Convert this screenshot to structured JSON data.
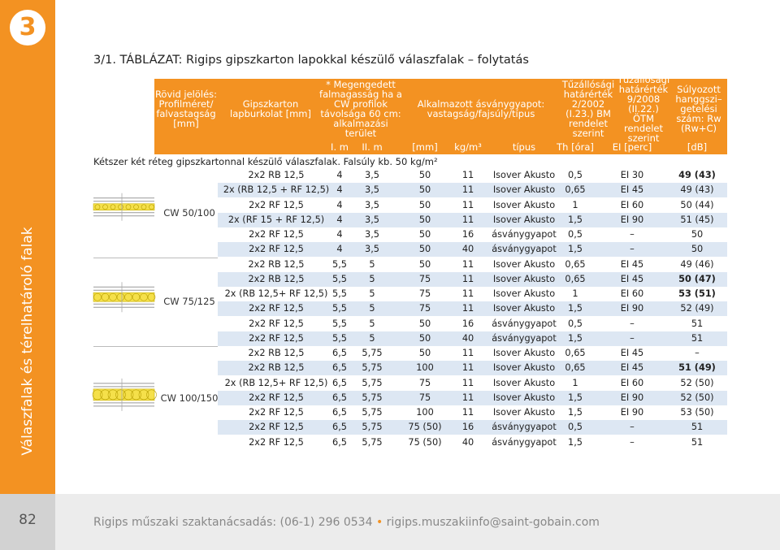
{
  "badge": "3",
  "side_title": "Válaszfalak és térelhatároló falak",
  "page_number": "82",
  "title": "3/1. TÁBLÁZAT: Rigips gipszkarton lapokkal készülő válaszfalak – folytatás",
  "table": {
    "headers": [
      "Rövid jelölés: Profilméret/ falvastagság [mm]",
      "Gipszkarton lapburkolat [mm]",
      "* Megengedett falmagasság ha a CW profilok távolsága 60 cm: alkalmazási terület",
      "Alkalmazott ásványgyapot: vastagság/fajsúly/típus",
      "Tűzállósági határérték 2/2002 (I.23.) BM rendelet szerint",
      "Tűzállósági határérték 9/2008 (II.22.) ÖTM rendelet szerint",
      "Súlyozott hanggszi– getelési szám: Rw (Rw+C)"
    ],
    "units": [
      "I. m",
      "II. m",
      "[mm]",
      "kg/m³",
      "típus",
      "Th [óra]",
      "EI [perc]",
      "[dB]"
    ],
    "section": "Kétszer két réteg gipszkartonnal készülő válaszfalak. Falsúly kb. 50 kg/m²",
    "groups": [
      {
        "label": "CW 50/100",
        "rows": [
          {
            "cells": [
              "2x2 RB 12,5",
              "4",
              "3,5",
              "50",
              "11",
              "Isover Akusto",
              "0,5",
              "EI 30",
              "49 (43)"
            ],
            "bold": true
          },
          {
            "cells": [
              "2x (RB 12,5 + RF 12,5)",
              "4",
              "3,5",
              "50",
              "11",
              "Isover Akusto",
              "0,65",
              "EI 45",
              "49 (43)"
            ],
            "bold": false
          },
          {
            "cells": [
              "2x2 RF 12,5",
              "4",
              "3,5",
              "50",
              "11",
              "Isover Akusto",
              "1",
              "EI 60",
              "50 (44)"
            ],
            "bold": false
          },
          {
            "cells": [
              "2x (RF 15 + RF 12,5)",
              "4",
              "3,5",
              "50",
              "11",
              "Isover Akusto",
              "1,5",
              "EI 90",
              "51 (45)"
            ],
            "bold": false
          },
          {
            "cells": [
              "2x2 RF 12,5",
              "4",
              "3,5",
              "50",
              "16",
              "ásványgyapot",
              "0,5",
              "–",
              "50"
            ],
            "bold": false
          },
          {
            "cells": [
              "2x2 RF 12,5",
              "4",
              "3,5",
              "50",
              "40",
              "ásványgyapot",
              "1,5",
              "–",
              "50"
            ],
            "bold": false
          }
        ]
      },
      {
        "label": "CW 75/125",
        "rows": [
          {
            "cells": [
              "2x2 RB 12,5",
              "5,5",
              "5",
              "50",
              "11",
              "Isover Akusto",
              "0,65",
              "EI 45",
              "49 (46)"
            ],
            "bold": false
          },
          {
            "cells": [
              "2x2 RB 12,5",
              "5,5",
              "5",
              "75",
              "11",
              "Isover Akusto",
              "0,65",
              "EI 45",
              "50 (47)"
            ],
            "bold": true
          },
          {
            "cells": [
              "2x (RB 12,5+ RF 12,5)",
              "5,5",
              "5",
              "75",
              "11",
              "Isover Akusto",
              "1",
              "EI 60",
              "53 (51)"
            ],
            "bold": true
          },
          {
            "cells": [
              "2x2 RF 12,5",
              "5,5",
              "5",
              "75",
              "11",
              "Isover Akusto",
              "1,5",
              "EI 90",
              "52 (49)"
            ],
            "bold": false
          },
          {
            "cells": [
              "2x2 RF 12,5",
              "5,5",
              "5",
              "50",
              "16",
              "ásványgyapot",
              "0,5",
              "–",
              "51"
            ],
            "bold": false
          },
          {
            "cells": [
              "2x2 RF 12,5",
              "5,5",
              "5",
              "50",
              "40",
              "ásványgyapot",
              "1,5",
              "–",
              "51"
            ],
            "bold": false
          }
        ]
      },
      {
        "label": "CW 100/150",
        "rows": [
          {
            "cells": [
              "2x2 RB 12,5",
              "6,5",
              "5,75",
              "50",
              "11",
              "Isover Akusto",
              "0,65",
              "EI 45",
              "–"
            ],
            "bold": false
          },
          {
            "cells": [
              "2x2 RB 12,5",
              "6,5",
              "5,75",
              "100",
              "11",
              "Isover Akusto",
              "0,65",
              "EI 45",
              "51 (49)"
            ],
            "bold": true
          },
          {
            "cells": [
              "2x (RB 12,5+ RF 12,5)",
              "6,5",
              "5,75",
              "75",
              "11",
              "Isover Akusto",
              "1",
              "EI 60",
              "52 (50)"
            ],
            "bold": false
          },
          {
            "cells": [
              "2x2 RF 12,5",
              "6,5",
              "5,75",
              "75",
              "11",
              "Isover Akusto",
              "1,5",
              "EI 90",
              "52 (50)"
            ],
            "bold": false
          },
          {
            "cells": [
              "2x2 RF 12,5",
              "6,5",
              "5,75",
              "100",
              "11",
              "Isover Akusto",
              "1,5",
              "EI 90",
              "53 (50)"
            ],
            "bold": false
          },
          {
            "cells": [
              "2x2 RF 12,5",
              "6,5",
              "5,75",
              "75 (50)",
              "16",
              "ásványgyapot",
              "0,5",
              "–",
              "51"
            ],
            "bold": false
          },
          {
            "cells": [
              "2x2 RF 12,5",
              "6,5",
              "5,75",
              "75 (50)",
              "40",
              "ásványgyapot",
              "1,5",
              "–",
              "51"
            ],
            "bold": false
          }
        ]
      }
    ]
  },
  "footer": {
    "contact": "Rigips műszaki szaktanácsadás: (06-1) 296 0534",
    "separator": "•",
    "email": "rigips.muszakiinfo@saint-gobain.com"
  }
}
